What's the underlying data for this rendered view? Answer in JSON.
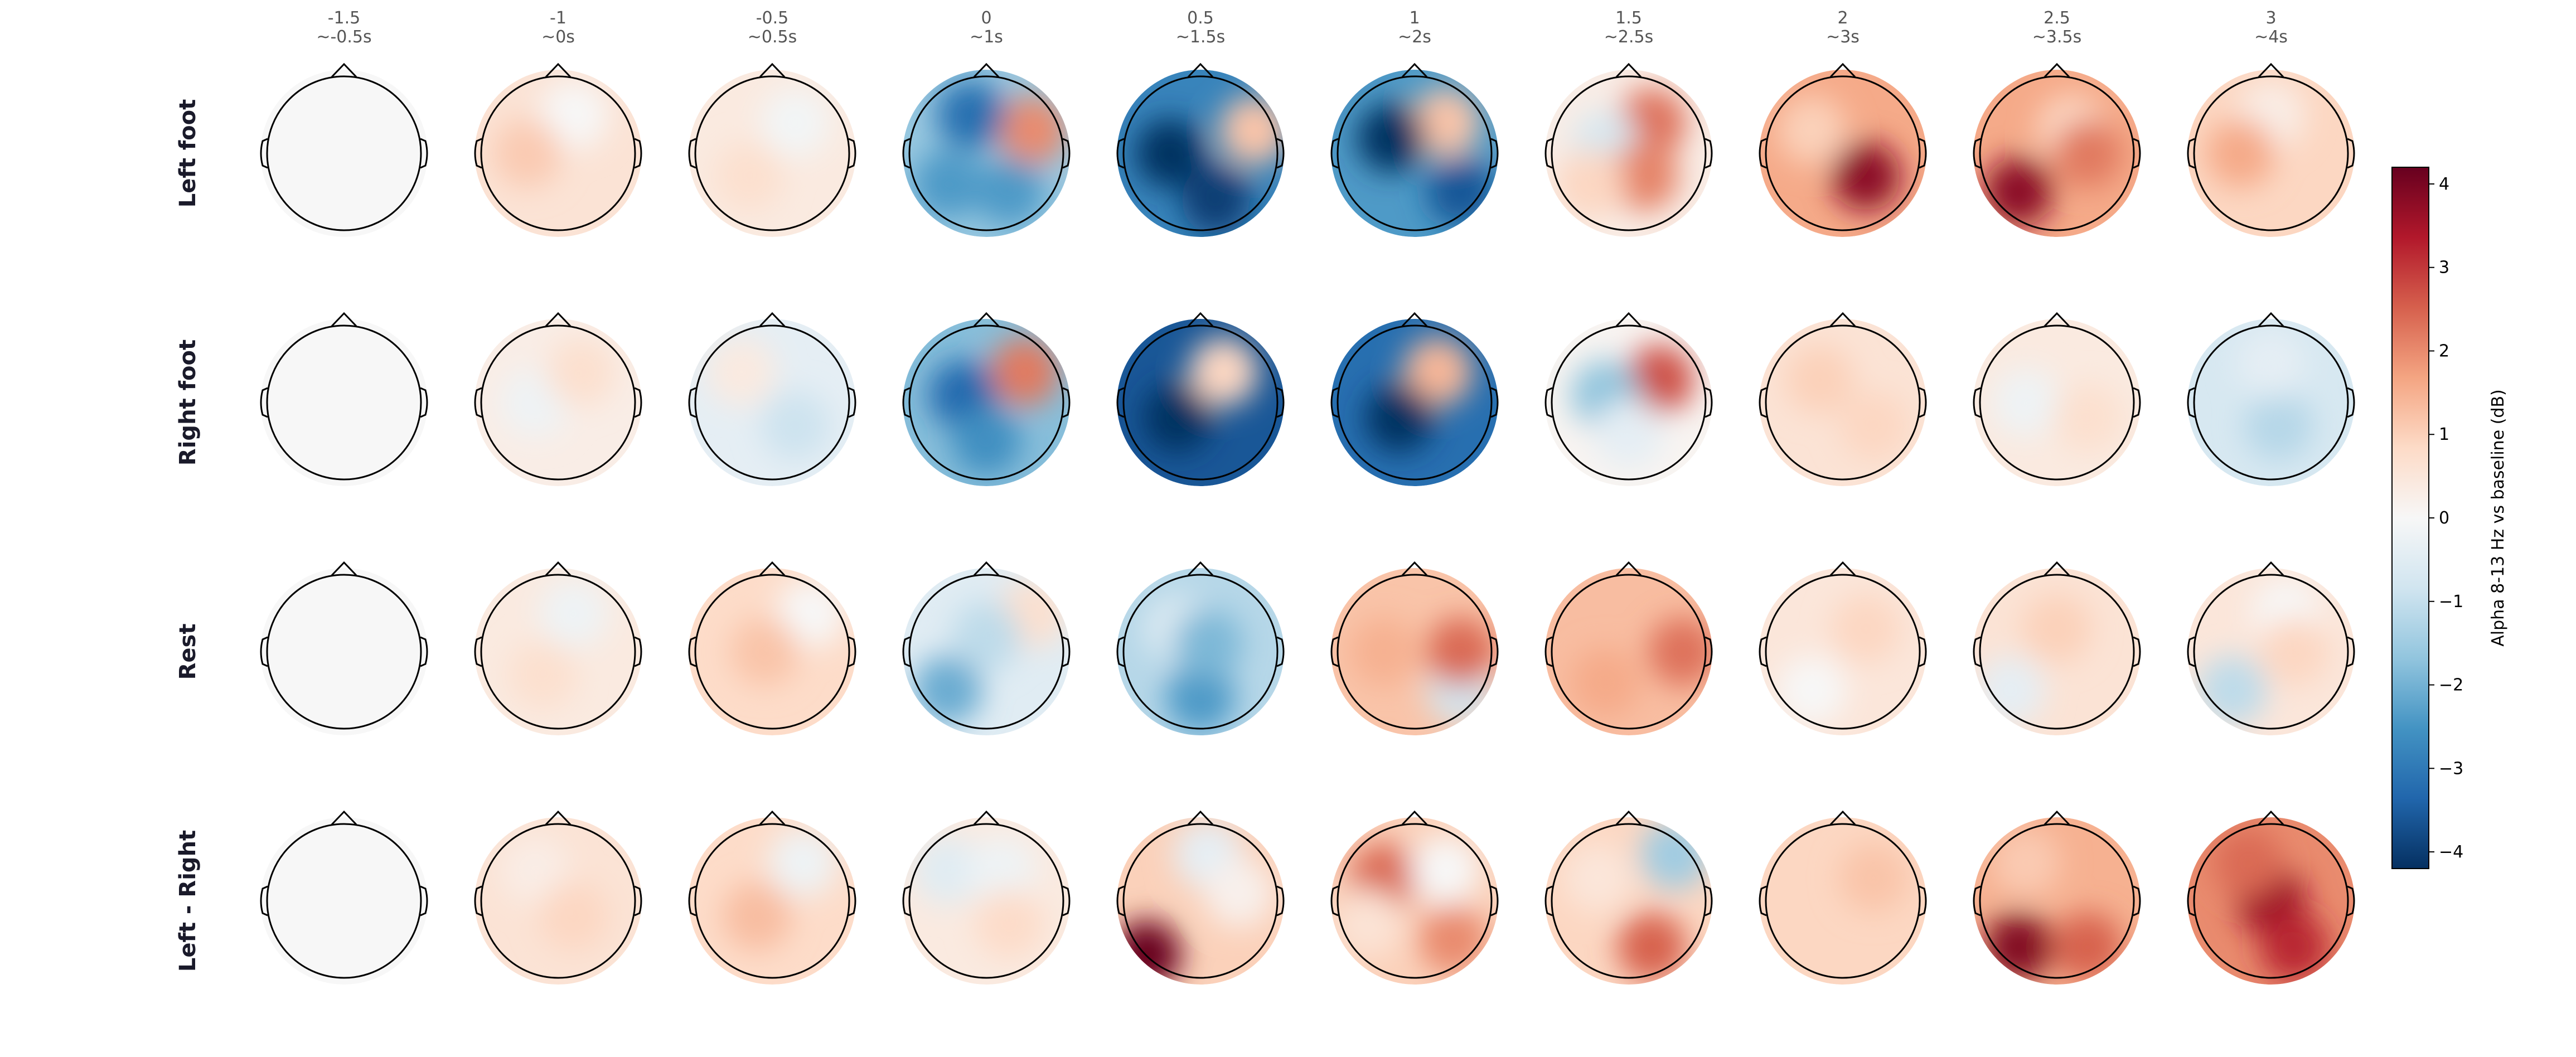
{
  "chart_data": {
    "type": "heatmap",
    "subtype": "scalp-topomap-grid",
    "columns": [
      {
        "time": "-1.5",
        "window": "~-0.5s"
      },
      {
        "time": "-1",
        "window": "~0s"
      },
      {
        "time": "-0.5",
        "window": "~0.5s"
      },
      {
        "time": "0",
        "window": "~1s"
      },
      {
        "time": "0.5",
        "window": "~1.5s"
      },
      {
        "time": "1",
        "window": "~2s"
      },
      {
        "time": "1.5",
        "window": "~2.5s"
      },
      {
        "time": "2",
        "window": "~3s"
      },
      {
        "time": "2.5",
        "window": "~3.5s"
      },
      {
        "time": "3",
        "window": "~4s"
      }
    ],
    "rows": [
      "Left foot",
      "Right foot",
      "Rest",
      "Left - Right"
    ],
    "colorbar": {
      "label": "Alpha 8-13 Hz vs baseline (dB)",
      "range": [
        -4.2,
        4.2
      ],
      "ticks": [
        "4",
        "3",
        "2",
        "1",
        "0",
        "−1",
        "−2",
        "−3",
        "−4"
      ],
      "colormap": "RdBu_r",
      "colormap_stops": [
        "#053061",
        "#2166ac",
        "#4393c3",
        "#92c5de",
        "#d1e5f0",
        "#f7f7f7",
        "#fddbc7",
        "#f4a582",
        "#d6604d",
        "#b2182b",
        "#67001f"
      ]
    },
    "maps": [
      [
        {
          "mean": 0.0,
          "blobs": []
        },
        {
          "mean": 0.6,
          "blobs": [
            {
              "x": 0.2,
              "y": -0.5,
              "v": -0.6
            },
            {
              "x": -0.4,
              "y": 0.0,
              "v": 0.5
            }
          ]
        },
        {
          "mean": 0.4,
          "blobs": [
            {
              "x": 0.3,
              "y": -0.4,
              "v": -0.5
            },
            {
              "x": -0.3,
              "y": 0.3,
              "v": 0.3
            }
          ]
        },
        {
          "mean": -1.6,
          "blobs": [
            {
              "x": 0.6,
              "y": -0.3,
              "v": 3.6
            },
            {
              "x": -0.2,
              "y": -0.5,
              "v": -1.6
            },
            {
              "x": -0.5,
              "y": 0.4,
              "v": -0.8
            },
            {
              "x": 0.3,
              "y": 0.5,
              "v": -0.8
            }
          ]
        },
        {
          "mean": -2.8,
          "blobs": [
            {
              "x": 0.7,
              "y": -0.3,
              "v": 4.0
            },
            {
              "x": -0.4,
              "y": 0.0,
              "v": -1.8
            },
            {
              "x": 0.2,
              "y": 0.6,
              "v": -1.2
            }
          ]
        },
        {
          "mean": -2.4,
          "blobs": [
            {
              "x": 0.4,
              "y": -0.4,
              "v": 3.6
            },
            {
              "x": -0.3,
              "y": -0.2,
              "v": -1.8
            },
            {
              "x": 0.6,
              "y": 0.5,
              "v": -1.2
            }
          ]
        },
        {
          "mean": 0.3,
          "blobs": [
            {
              "x": 0.3,
              "y": -0.4,
              "v": 2.0
            },
            {
              "x": -0.3,
              "y": -0.1,
              "v": -1.0
            },
            {
              "x": 0.2,
              "y": 0.3,
              "v": 1.8
            },
            {
              "x": -0.5,
              "y": 0.4,
              "v": 0.6
            }
          ]
        },
        {
          "mean": 1.6,
          "blobs": [
            {
              "x": 0.3,
              "y": 0.3,
              "v": 2.2
            },
            {
              "x": -0.4,
              "y": -0.3,
              "v": -0.6
            }
          ]
        },
        {
          "mean": 1.6,
          "blobs": [
            {
              "x": -0.5,
              "y": 0.5,
              "v": 2.2
            },
            {
              "x": 0.2,
              "y": -0.3,
              "v": -0.8
            },
            {
              "x": 0.4,
              "y": 0.0,
              "v": 0.6
            }
          ]
        },
        {
          "mean": 0.9,
          "blobs": [
            {
              "x": 0.0,
              "y": -0.5,
              "v": -0.6
            },
            {
              "x": -0.4,
              "y": 0.0,
              "v": 0.7
            }
          ]
        }
      ],
      [
        {
          "mean": 0.0,
          "blobs": []
        },
        {
          "mean": 0.3,
          "blobs": [
            {
              "x": -0.3,
              "y": 0.0,
              "v": -0.5
            },
            {
              "x": 0.3,
              "y": -0.4,
              "v": 0.4
            }
          ]
        },
        {
          "mean": -0.4,
          "blobs": [
            {
              "x": -0.4,
              "y": -0.4,
              "v": 0.8
            },
            {
              "x": 0.3,
              "y": 0.3,
              "v": -0.5
            }
          ]
        },
        {
          "mean": -1.8,
          "blobs": [
            {
              "x": 0.5,
              "y": -0.4,
              "v": 4.0
            },
            {
              "x": -0.3,
              "y": -0.1,
              "v": -1.5
            },
            {
              "x": 0.0,
              "y": 0.5,
              "v": -0.8
            }
          ]
        },
        {
          "mean": -3.6,
          "blobs": [
            {
              "x": 0.3,
              "y": -0.4,
              "v": 4.5
            },
            {
              "x": -0.3,
              "y": 0.2,
              "v": -1.0
            }
          ]
        },
        {
          "mean": -3.2,
          "blobs": [
            {
              "x": 0.3,
              "y": -0.4,
              "v": 4.6
            },
            {
              "x": -0.2,
              "y": 0.2,
              "v": -1.0
            }
          ]
        },
        {
          "mean": 0.1,
          "blobs": [
            {
              "x": 0.4,
              "y": -0.3,
              "v": 2.6
            },
            {
              "x": -0.3,
              "y": -0.1,
              "v": -1.8
            },
            {
              "x": 0.0,
              "y": 0.4,
              "v": -0.5
            }
          ]
        },
        {
          "mean": 0.6,
          "blobs": [
            {
              "x": -0.3,
              "y": -0.3,
              "v": 0.4
            },
            {
              "x": 0.4,
              "y": 0.3,
              "v": 0.3
            }
          ]
        },
        {
          "mean": 0.4,
          "blobs": [
            {
              "x": -0.4,
              "y": 0.0,
              "v": -0.6
            },
            {
              "x": 0.4,
              "y": 0.2,
              "v": 0.3
            }
          ]
        },
        {
          "mean": -0.7,
          "blobs": [
            {
              "x": 0.1,
              "y": 0.3,
              "v": -0.5
            },
            {
              "x": 0.0,
              "y": -0.5,
              "v": 0.3
            }
          ]
        }
      ],
      [
        {
          "mean": 0.0,
          "blobs": []
        },
        {
          "mean": 0.4,
          "blobs": [
            {
              "x": 0.2,
              "y": -0.5,
              "v": -0.6
            },
            {
              "x": -0.2,
              "y": 0.3,
              "v": 0.3
            }
          ]
        },
        {
          "mean": 0.8,
          "blobs": [
            {
              "x": 0.5,
              "y": -0.5,
              "v": -0.8
            },
            {
              "x": -0.1,
              "y": 0.0,
              "v": 0.4
            }
          ]
        },
        {
          "mean": -0.5,
          "blobs": [
            {
              "x": -0.5,
              "y": 0.5,
              "v": -1.6
            },
            {
              "x": 0.6,
              "y": -0.5,
              "v": 1.2
            },
            {
              "x": 0.0,
              "y": -0.2,
              "v": -0.6
            }
          ]
        },
        {
          "mean": -1.2,
          "blobs": [
            {
              "x": 0.0,
              "y": 0.6,
              "v": -1.2
            },
            {
              "x": -0.3,
              "y": -0.3,
              "v": 0.6
            },
            {
              "x": 0.1,
              "y": -0.1,
              "v": -0.7
            }
          ]
        },
        {
          "mean": 1.2,
          "blobs": [
            {
              "x": 0.6,
              "y": 0.5,
              "v": -2.0
            },
            {
              "x": 0.6,
              "y": 0.0,
              "v": 1.2
            },
            {
              "x": -0.4,
              "y": 0.0,
              "v": 0.3
            }
          ]
        },
        {
          "mean": 1.3,
          "blobs": [
            {
              "x": 0.7,
              "y": 0.0,
              "v": 1.0
            },
            {
              "x": -0.3,
              "y": 0.4,
              "v": 0.3
            }
          ]
        },
        {
          "mean": 0.5,
          "blobs": [
            {
              "x": -0.4,
              "y": 0.5,
              "v": -0.5
            },
            {
              "x": 0.3,
              "y": -0.3,
              "v": 0.4
            }
          ]
        },
        {
          "mean": 0.6,
          "blobs": [
            {
              "x": -0.6,
              "y": 0.5,
              "v": -1.0
            },
            {
              "x": 0.0,
              "y": -0.3,
              "v": 0.4
            }
          ]
        },
        {
          "mean": 0.5,
          "blobs": [
            {
              "x": -0.5,
              "y": 0.5,
              "v": -1.6
            },
            {
              "x": 0.2,
              "y": -0.5,
              "v": -0.5
            },
            {
              "x": 0.3,
              "y": 0.0,
              "v": 0.4
            }
          ]
        }
      ],
      [
        {
          "mean": 0.0,
          "blobs": []
        },
        {
          "mean": 0.6,
          "blobs": [
            {
              "x": -0.3,
              "y": -0.4,
              "v": -0.3
            },
            {
              "x": 0.2,
              "y": 0.2,
              "v": 0.3
            }
          ]
        },
        {
          "mean": 0.8,
          "blobs": [
            {
              "x": 0.4,
              "y": -0.5,
              "v": -1.0
            },
            {
              "x": -0.2,
              "y": 0.2,
              "v": 0.5
            }
          ]
        },
        {
          "mean": 0.4,
          "blobs": [
            {
              "x": -0.5,
              "y": -0.4,
              "v": -0.9
            },
            {
              "x": 0.2,
              "y": -0.4,
              "v": -0.6
            },
            {
              "x": 0.3,
              "y": 0.3,
              "v": 0.4
            }
          ]
        },
        {
          "mean": 1.0,
          "blobs": [
            {
              "x": -0.7,
              "y": 0.7,
              "v": 3.6
            },
            {
              "x": 0.1,
              "y": -0.6,
              "v": -1.4
            },
            {
              "x": 0.5,
              "y": -0.1,
              "v": -0.8
            }
          ]
        },
        {
          "mean": 1.0,
          "blobs": [
            {
              "x": -0.4,
              "y": -0.3,
              "v": 1.4
            },
            {
              "x": 0.5,
              "y": 0.5,
              "v": 1.0
            },
            {
              "x": 0.4,
              "y": -0.4,
              "v": -1.0
            },
            {
              "x": -0.6,
              "y": 0.3,
              "v": -0.4
            }
          ]
        },
        {
          "mean": 0.9,
          "blobs": [
            {
              "x": 0.6,
              "y": -0.6,
              "v": -2.4
            },
            {
              "x": 0.3,
              "y": 0.6,
              "v": 1.6
            },
            {
              "x": -0.4,
              "y": -0.3,
              "v": -0.4
            }
          ]
        },
        {
          "mean": 0.9,
          "blobs": [
            {
              "x": 0.4,
              "y": -0.3,
              "v": 0.3
            }
          ]
        },
        {
          "mean": 1.5,
          "blobs": [
            {
              "x": -0.5,
              "y": 0.6,
              "v": 2.4
            },
            {
              "x": 0.4,
              "y": 0.6,
              "v": 1.0
            },
            {
              "x": -0.4,
              "y": -0.5,
              "v": -0.4
            }
          ]
        },
        {
          "mean": 2.0,
          "blobs": [
            {
              "x": 0.0,
              "y": 0.0,
              "v": 1.6
            },
            {
              "x": 0.3,
              "y": 0.6,
              "v": 1.2
            },
            {
              "x": -0.3,
              "y": -0.5,
              "v": 0.4
            }
          ]
        }
      ]
    ]
  }
}
